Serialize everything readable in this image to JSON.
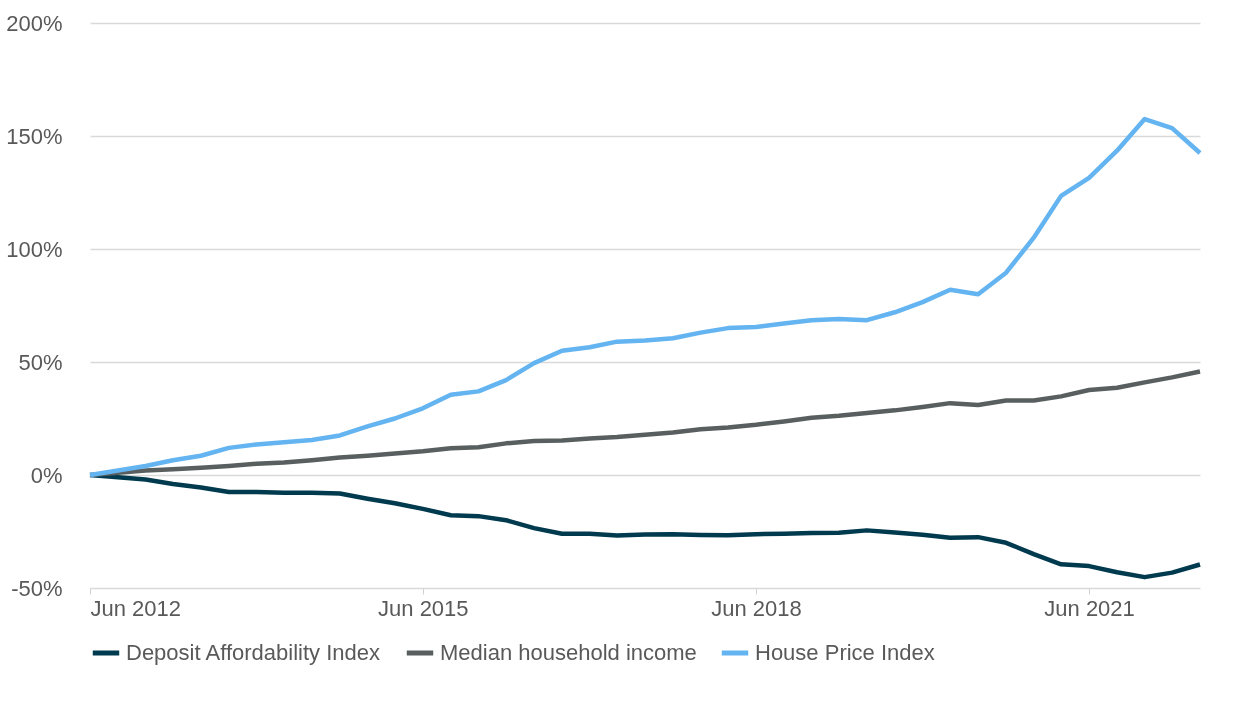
{
  "chart_data": {
    "type": "line",
    "x": [
      "2012-06",
      "2012-09",
      "2012-12",
      "2013-03",
      "2013-06",
      "2013-09",
      "2013-12",
      "2014-03",
      "2014-06",
      "2014-09",
      "2014-12",
      "2015-03",
      "2015-06",
      "2015-09",
      "2015-12",
      "2016-03",
      "2016-06",
      "2016-09",
      "2016-12",
      "2017-03",
      "2017-06",
      "2017-09",
      "2017-12",
      "2018-03",
      "2018-06",
      "2018-09",
      "2018-12",
      "2019-03",
      "2019-06",
      "2019-09",
      "2019-12",
      "2020-03",
      "2020-06",
      "2020-09",
      "2020-12",
      "2021-03",
      "2021-06",
      "2021-09",
      "2021-12",
      "2022-03",
      "2022-06"
    ],
    "series": [
      {
        "name": "Deposit Affordability Index",
        "color": "#003a4f",
        "values": [
          0,
          -1,
          -2,
          -4,
          -5.5,
          -7.5,
          -7.5,
          -7.8,
          -7.8,
          -8.2,
          -10.5,
          -12.5,
          -15,
          -17.8,
          -18.2,
          -20,
          -23.5,
          -26,
          -26,
          -26.8,
          -26.3,
          -26.2,
          -26.5,
          -26.7,
          -26.2,
          -26,
          -25.7,
          -25.6,
          -24.5,
          -25.4,
          -26.4,
          -27.8,
          -27.5,
          -30,
          -35,
          -39.5,
          -40.3,
          -43,
          -45.2,
          -43.2,
          -39.6
        ]
      },
      {
        "name": "Median household income",
        "color": "#595f5f",
        "values": [
          0,
          1,
          2,
          2.5,
          3.2,
          4,
          5,
          5.5,
          6.5,
          7.7,
          8.5,
          9.5,
          10.5,
          11.8,
          12.3,
          14,
          15,
          15.3,
          16.2,
          16.8,
          17.8,
          18.8,
          20.2,
          21,
          22.2,
          23.7,
          25.3,
          26.2,
          27.4,
          28.6,
          30.1,
          31.8,
          31,
          33,
          33,
          34.8,
          37.6,
          38.6,
          41,
          43.2,
          45.8
        ]
      },
      {
        "name": "House Price Index",
        "color": "#63b4f0",
        "values": [
          0,
          2,
          4,
          6.5,
          8.5,
          12,
          13.5,
          14.5,
          15.5,
          17.5,
          21.5,
          25,
          29.5,
          35.5,
          37,
          42,
          49.5,
          55,
          56.5,
          59,
          59.5,
          60.5,
          63,
          65,
          65.5,
          67,
          68.5,
          69,
          68.5,
          72,
          76.5,
          82,
          80,
          89.5,
          105,
          123.5,
          131.5,
          143.5,
          157.5,
          153.5,
          142.5
        ]
      }
    ],
    "xlim": [
      "2012-06",
      "2022-06"
    ],
    "xticks": [
      {
        "value": "2012-06",
        "label": "Jun 2012"
      },
      {
        "value": "2015-06",
        "label": "Jun 2015"
      },
      {
        "value": "2018-06",
        "label": "Jun 2018"
      },
      {
        "value": "2021-06",
        "label": "Jun 2021"
      }
    ],
    "ylim": [
      -50,
      200
    ],
    "yticks": [
      {
        "value": -50,
        "label": "-50%"
      },
      {
        "value": 0,
        "label": "0%"
      },
      {
        "value": 50,
        "label": "50%"
      },
      {
        "value": 100,
        "label": "100%"
      },
      {
        "value": 150,
        "label": "150%"
      },
      {
        "value": 200,
        "label": "200%"
      }
    ],
    "grid": "y",
    "legend": "bottom",
    "marker": "none",
    "line_style": "solid"
  }
}
